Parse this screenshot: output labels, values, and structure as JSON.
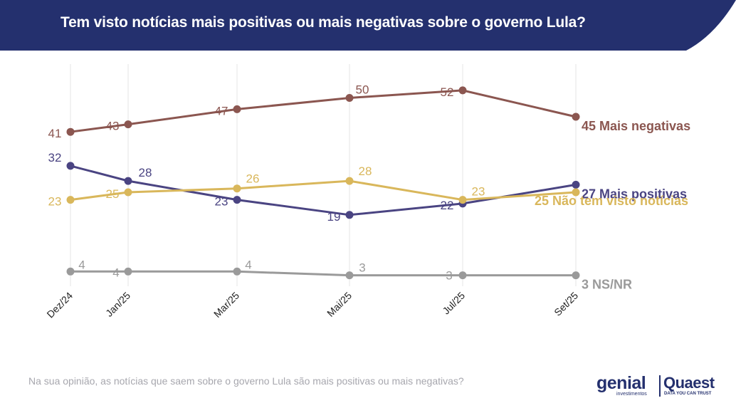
{
  "header": {
    "title": "Tem visto notícias mais positivas ou mais negativas sobre o governo Lula?"
  },
  "footnote": "Na sua opinião, as notícias que saem sobre o governo Lula são mais positivas ou mais negativas?",
  "logos": {
    "genial": "genial",
    "genial_sub": "investimentos",
    "quaest": "Quaest",
    "quaest_tagline": "DATA YOU CAN TRUST"
  },
  "colors": {
    "header_bg": "#24306e",
    "grid": "#e6e6e6"
  },
  "chart_data": {
    "type": "line",
    "categories": [
      "Dez/24",
      "Jan/25",
      "Mar/25",
      "Mai/25",
      "Jul/25",
      "Set/25"
    ],
    "ylim": [
      0,
      60
    ],
    "grid": "vertical",
    "series": [
      {
        "name": "Mais negativas",
        "color": "#8b5650",
        "values": [
          41,
          43,
          47,
          50,
          52,
          45
        ],
        "end_label": "45 Mais negativas"
      },
      {
        "name": "Mais positivas",
        "color": "#4a4482",
        "values": [
          32,
          28,
          23,
          19,
          22,
          27
        ],
        "end_label": "27 Mais positivas"
      },
      {
        "name": "Não tem visto notícias",
        "color": "#d9b75b",
        "values": [
          23,
          25,
          26,
          28,
          23,
          25
        ],
        "end_label": "25 Não tem visto notícias"
      },
      {
        "name": "NS/NR",
        "color": "#9a9a9a",
        "values": [
          4,
          4,
          4,
          3,
          3,
          3
        ],
        "end_label": "3 NS/NR"
      }
    ]
  }
}
